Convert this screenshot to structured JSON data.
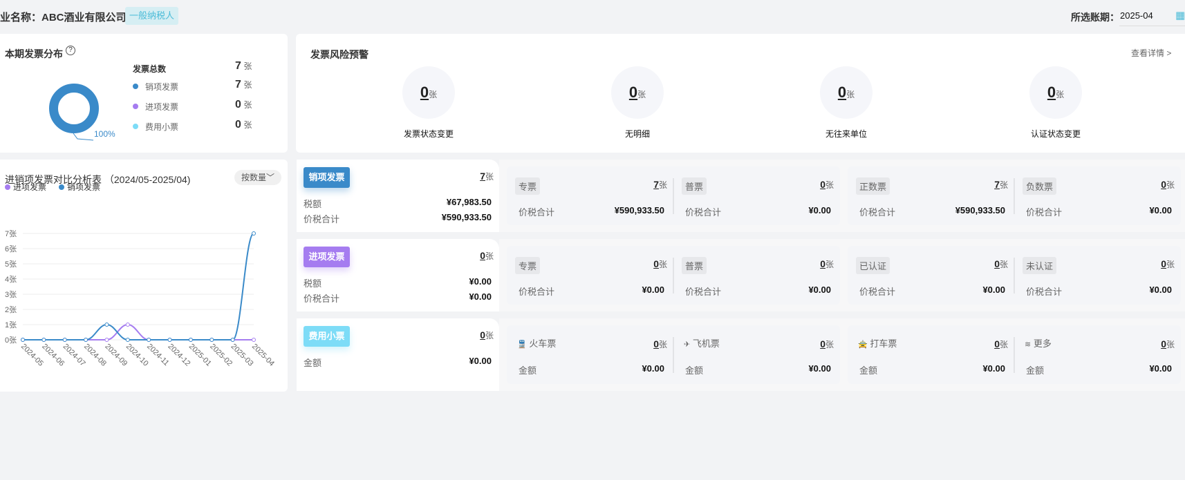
{
  "header": {
    "company_label": "业名称：ABC酒业有限公司",
    "taxpayer_badge": "一般纳税人",
    "period_label": "所选账期：",
    "period_value": "2025-04"
  },
  "distribution": {
    "title": "本期发票分布",
    "total_label": "发票总数",
    "total_value": "7",
    "unit": "张",
    "percent_label": "100%",
    "items": [
      {
        "label": "销项发票",
        "value": "7",
        "color": "#3a8ac9"
      },
      {
        "label": "进项发票",
        "value": "0",
        "color": "#a57cf0"
      },
      {
        "label": "费用小票",
        "value": "0",
        "color": "#7ddcf7"
      }
    ]
  },
  "risk": {
    "title": "发票风险预警",
    "detail_link": "查看详情 >",
    "unit": "张",
    "items": [
      {
        "label": "发票状态变更",
        "value": "0"
      },
      {
        "label": "无明细",
        "value": "0"
      },
      {
        "label": "无往来单位",
        "value": "0"
      },
      {
        "label": "认证状态变更",
        "value": "0"
      }
    ]
  },
  "chart": {
    "title": "进销项发票对比分析表 （2024/05-2025/04)",
    "mode_button": "按数量"
  },
  "chart_data": {
    "type": "line",
    "xlabel": "",
    "ylabel": "",
    "ylim": [
      0,
      7
    ],
    "grid": true,
    "legend_position": "top-left",
    "y_ticks": [
      "0张",
      "1张",
      "2张",
      "3张",
      "4张",
      "5张",
      "6张",
      "7张"
    ],
    "categories": [
      "2024-05",
      "2024-06",
      "2024-07",
      "2024-08",
      "2024-09",
      "2024-10",
      "2024-11",
      "2024-12",
      "2025-01",
      "2025-02",
      "2025-03",
      "2025-04"
    ],
    "series": [
      {
        "name": "进项发票",
        "color": "#a57cf0",
        "values": [
          0,
          0,
          0,
          0,
          0,
          1,
          0,
          0,
          0,
          0,
          0,
          0
        ]
      },
      {
        "name": "销项发票",
        "color": "#3a8ac9",
        "values": [
          0,
          0,
          0,
          0,
          1,
          0,
          0,
          0,
          0,
          0,
          0,
          7
        ]
      }
    ]
  },
  "rows": [
    {
      "badge": "销项发票",
      "color": "#3a8ac9",
      "count": "7",
      "lines": [
        {
          "label": "税额",
          "value": "¥67,983.50"
        },
        {
          "label": "价税合计",
          "value": "¥590,933.50"
        }
      ],
      "cells": [
        {
          "tag": "专票",
          "count": "7",
          "label": "价税合计",
          "value": "¥590,933.50"
        },
        {
          "tag": "普票",
          "count": "0",
          "label": "价税合计",
          "value": "¥0.00"
        },
        {
          "tag": "正数票",
          "count": "7",
          "label": "价税合计",
          "value": "¥590,933.50"
        },
        {
          "tag": "负数票",
          "count": "0",
          "label": "价税合计",
          "value": "¥0.00"
        }
      ]
    },
    {
      "badge": "进项发票",
      "color": "#a57cf0",
      "count": "0",
      "lines": [
        {
          "label": "税额",
          "value": "¥0.00"
        },
        {
          "label": "价税合计",
          "value": "¥0.00"
        }
      ],
      "cells": [
        {
          "tag": "专票",
          "count": "0",
          "label": "价税合计",
          "value": "¥0.00"
        },
        {
          "tag": "普票",
          "count": "0",
          "label": "价税合计",
          "value": "¥0.00"
        },
        {
          "tag": "已认证",
          "count": "0",
          "label": "价税合计",
          "value": "¥0.00"
        },
        {
          "tag": "未认证",
          "count": "0",
          "label": "价税合计",
          "value": "¥0.00"
        }
      ]
    },
    {
      "badge": "费用小票",
      "color": "#7ddcf7",
      "count": "0",
      "lines": [
        {
          "label": "金额",
          "value": "¥0.00"
        }
      ],
      "cells": [
        {
          "icon": "train-icon",
          "glyph": "🚆",
          "tag": "火车票",
          "count": "0",
          "label": "金额",
          "value": "¥0.00"
        },
        {
          "icon": "plane-icon",
          "glyph": "✈",
          "tag": "飞机票",
          "count": "0",
          "label": "金额",
          "value": "¥0.00"
        },
        {
          "icon": "taxi-icon",
          "glyph": "🚖",
          "tag": "打车票",
          "count": "0",
          "label": "金额",
          "value": "¥0.00"
        },
        {
          "icon": "layers-icon",
          "glyph": "≋",
          "tag": "更多",
          "count": "0",
          "label": "金额",
          "value": "¥0.00"
        }
      ]
    }
  ]
}
